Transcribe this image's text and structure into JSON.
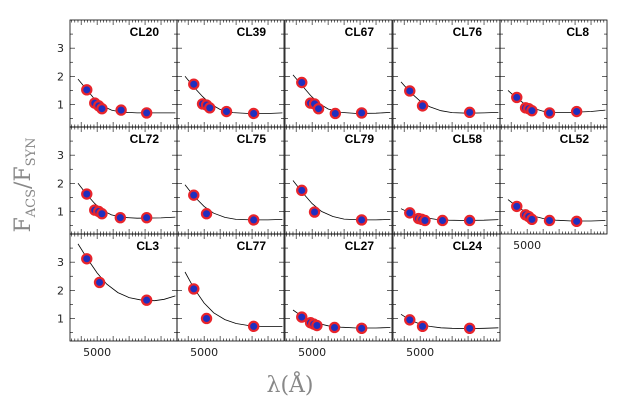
{
  "chart_data": {
    "type": "scatter",
    "xlabel_main": "λ(Å)",
    "ylabel_main": "F",
    "ylabel_sub_acs": "ACS",
    "ylabel_sep": "/F",
    "ylabel_sub_syn": "SYN",
    "x_tick_label": "5000",
    "y_tick_labels": [
      "1",
      "2",
      "3"
    ],
    "xlim": [
      3300,
      10000
    ],
    "ylim": [
      0.2,
      4.0
    ],
    "point_fill": "#1f2fbf",
    "point_edge": "#e8242b",
    "panels": [
      {
        "name": "CL20",
        "points": [
          [
            4350,
            1.52
          ],
          [
            4850,
            1.05
          ],
          [
            5100,
            0.95
          ],
          [
            5300,
            0.85
          ],
          [
            6500,
            0.8
          ],
          [
            8100,
            0.7
          ]
        ],
        "fit": [
          [
            3800,
            1.9
          ],
          [
            4350,
            1.52
          ],
          [
            4850,
            1.18
          ],
          [
            5300,
            0.96
          ],
          [
            5900,
            0.8
          ],
          [
            6500,
            0.73
          ],
          [
            7500,
            0.7
          ],
          [
            9000,
            0.7
          ],
          [
            9900,
            0.7
          ]
        ]
      },
      {
        "name": "CL39",
        "points": [
          [
            4350,
            1.72
          ],
          [
            4900,
            1.02
          ],
          [
            5150,
            0.98
          ],
          [
            5350,
            0.88
          ],
          [
            6400,
            0.75
          ],
          [
            8100,
            0.68
          ]
        ],
        "fit": [
          [
            3800,
            2.0
          ],
          [
            4350,
            1.62
          ],
          [
            4900,
            1.28
          ],
          [
            5400,
            1.02
          ],
          [
            6000,
            0.82
          ],
          [
            6800,
            0.71
          ],
          [
            7800,
            0.68
          ],
          [
            9000,
            0.68
          ],
          [
            9900,
            0.7
          ]
        ]
      },
      {
        "name": "CL67",
        "points": [
          [
            4350,
            1.78
          ],
          [
            4900,
            1.05
          ],
          [
            5150,
            1.02
          ],
          [
            5400,
            0.85
          ],
          [
            6450,
            0.68
          ],
          [
            8100,
            0.7
          ]
        ],
        "fit": [
          [
            3800,
            2.05
          ],
          [
            4350,
            1.68
          ],
          [
            4900,
            1.32
          ],
          [
            5400,
            1.05
          ],
          [
            6000,
            0.84
          ],
          [
            6800,
            0.72
          ],
          [
            7800,
            0.68
          ],
          [
            9000,
            0.69
          ],
          [
            9900,
            0.72
          ]
        ]
      },
      {
        "name": "CL76",
        "points": [
          [
            4350,
            1.48
          ],
          [
            5150,
            0.95
          ],
          [
            8100,
            0.72
          ]
        ],
        "fit": [
          [
            3800,
            1.8
          ],
          [
            4350,
            1.45
          ],
          [
            5000,
            1.12
          ],
          [
            5600,
            0.92
          ],
          [
            6300,
            0.78
          ],
          [
            7000,
            0.71
          ],
          [
            8000,
            0.69
          ],
          [
            9000,
            0.7
          ],
          [
            9900,
            0.72
          ]
        ]
      },
      {
        "name": "CL8",
        "points": [
          [
            4350,
            1.25
          ],
          [
            4900,
            0.88
          ],
          [
            5100,
            0.85
          ],
          [
            5300,
            0.78
          ],
          [
            6400,
            0.7
          ],
          [
            8100,
            0.75
          ]
        ],
        "fit": [
          [
            3800,
            1.5
          ],
          [
            4350,
            1.22
          ],
          [
            4900,
            1.0
          ],
          [
            5400,
            0.86
          ],
          [
            6000,
            0.76
          ],
          [
            6800,
            0.72
          ],
          [
            7800,
            0.72
          ],
          [
            9000,
            0.75
          ],
          [
            9900,
            0.8
          ]
        ]
      },
      {
        "name": "CL72",
        "points": [
          [
            4350,
            1.62
          ],
          [
            4850,
            1.05
          ],
          [
            5100,
            1.0
          ],
          [
            5300,
            0.92
          ],
          [
            6450,
            0.78
          ],
          [
            8100,
            0.78
          ]
        ],
        "fit": [
          [
            3800,
            2.0
          ],
          [
            4350,
            1.6
          ],
          [
            4850,
            1.28
          ],
          [
            5300,
            1.05
          ],
          [
            5900,
            0.88
          ],
          [
            6600,
            0.79
          ],
          [
            7500,
            0.76
          ],
          [
            9000,
            0.77
          ],
          [
            9900,
            0.8
          ]
        ]
      },
      {
        "name": "CL75",
        "points": [
          [
            4350,
            1.58
          ],
          [
            5150,
            0.92
          ],
          [
            8100,
            0.7
          ]
        ],
        "fit": [
          [
            3800,
            1.95
          ],
          [
            4350,
            1.55
          ],
          [
            5000,
            1.18
          ],
          [
            5600,
            0.94
          ],
          [
            6300,
            0.79
          ],
          [
            7000,
            0.72
          ],
          [
            8000,
            0.7
          ],
          [
            9000,
            0.7
          ],
          [
            9900,
            0.72
          ]
        ]
      },
      {
        "name": "CL79",
        "points": [
          [
            4350,
            1.75
          ],
          [
            5150,
            0.98
          ],
          [
            8100,
            0.7
          ]
        ],
        "fit": [
          [
            3800,
            2.1
          ],
          [
            4350,
            1.7
          ],
          [
            5000,
            1.28
          ],
          [
            5600,
            1.0
          ],
          [
            6300,
            0.82
          ],
          [
            7000,
            0.73
          ],
          [
            8000,
            0.7
          ],
          [
            9000,
            0.7
          ],
          [
            9900,
            0.72
          ]
        ]
      },
      {
        "name": "CL58",
        "points": [
          [
            4350,
            0.95
          ],
          [
            4900,
            0.75
          ],
          [
            5100,
            0.72
          ],
          [
            5300,
            0.68
          ],
          [
            6400,
            0.68
          ],
          [
            8100,
            0.68
          ]
        ],
        "fit": [
          [
            3800,
            1.1
          ],
          [
            4350,
            0.95
          ],
          [
            4900,
            0.84
          ],
          [
            5400,
            0.77
          ],
          [
            6000,
            0.72
          ],
          [
            6800,
            0.69
          ],
          [
            7800,
            0.68
          ],
          [
            9000,
            0.69
          ],
          [
            9900,
            0.71
          ]
        ]
      },
      {
        "name": "CL52",
        "points": [
          [
            4350,
            1.18
          ],
          [
            4900,
            0.88
          ],
          [
            5100,
            0.82
          ],
          [
            5300,
            0.72
          ],
          [
            6400,
            0.68
          ],
          [
            8100,
            0.65
          ]
        ],
        "fit": [
          [
            3800,
            1.42
          ],
          [
            4350,
            1.18
          ],
          [
            4900,
            0.98
          ],
          [
            5400,
            0.84
          ],
          [
            6000,
            0.75
          ],
          [
            6800,
            0.69
          ],
          [
            7800,
            0.66
          ],
          [
            9000,
            0.66
          ],
          [
            9900,
            0.68
          ]
        ]
      },
      {
        "name": "CL3",
        "points": [
          [
            4350,
            3.12
          ],
          [
            5150,
            2.28
          ],
          [
            8100,
            1.65
          ]
        ],
        "fit": [
          [
            3800,
            3.65
          ],
          [
            4350,
            3.15
          ],
          [
            5000,
            2.62
          ],
          [
            5600,
            2.22
          ],
          [
            6300,
            1.92
          ],
          [
            7000,
            1.74
          ],
          [
            7800,
            1.65
          ],
          [
            8600,
            1.63
          ],
          [
            9200,
            1.68
          ],
          [
            9900,
            1.8
          ]
        ]
      },
      {
        "name": "CL77",
        "points": [
          [
            4350,
            2.05
          ],
          [
            5150,
            1.0
          ],
          [
            8100,
            0.72
          ]
        ],
        "fit": [
          [
            3800,
            2.65
          ],
          [
            4350,
            2.08
          ],
          [
            5000,
            1.55
          ],
          [
            5600,
            1.2
          ],
          [
            6300,
            0.96
          ],
          [
            7000,
            0.82
          ],
          [
            8000,
            0.73
          ],
          [
            9000,
            0.71
          ],
          [
            9900,
            0.72
          ]
        ]
      },
      {
        "name": "CL27",
        "points": [
          [
            4350,
            1.05
          ],
          [
            4900,
            0.85
          ],
          [
            5100,
            0.8
          ],
          [
            5300,
            0.75
          ],
          [
            6400,
            0.68
          ],
          [
            8100,
            0.65
          ]
        ],
        "fit": [
          [
            3800,
            1.3
          ],
          [
            4350,
            1.08
          ],
          [
            4900,
            0.92
          ],
          [
            5400,
            0.82
          ],
          [
            6000,
            0.74
          ],
          [
            6800,
            0.69
          ],
          [
            7800,
            0.66
          ],
          [
            9000,
            0.66
          ],
          [
            9900,
            0.68
          ]
        ]
      },
      {
        "name": "CL24",
        "points": [
          [
            4350,
            0.95
          ],
          [
            5150,
            0.72
          ],
          [
            8100,
            0.65
          ]
        ],
        "fit": [
          [
            3800,
            1.15
          ],
          [
            4350,
            0.95
          ],
          [
            5000,
            0.8
          ],
          [
            5600,
            0.72
          ],
          [
            6300,
            0.67
          ],
          [
            7000,
            0.65
          ],
          [
            8000,
            0.64
          ],
          [
            9000,
            0.65
          ],
          [
            9900,
            0.67
          ]
        ]
      }
    ]
  }
}
